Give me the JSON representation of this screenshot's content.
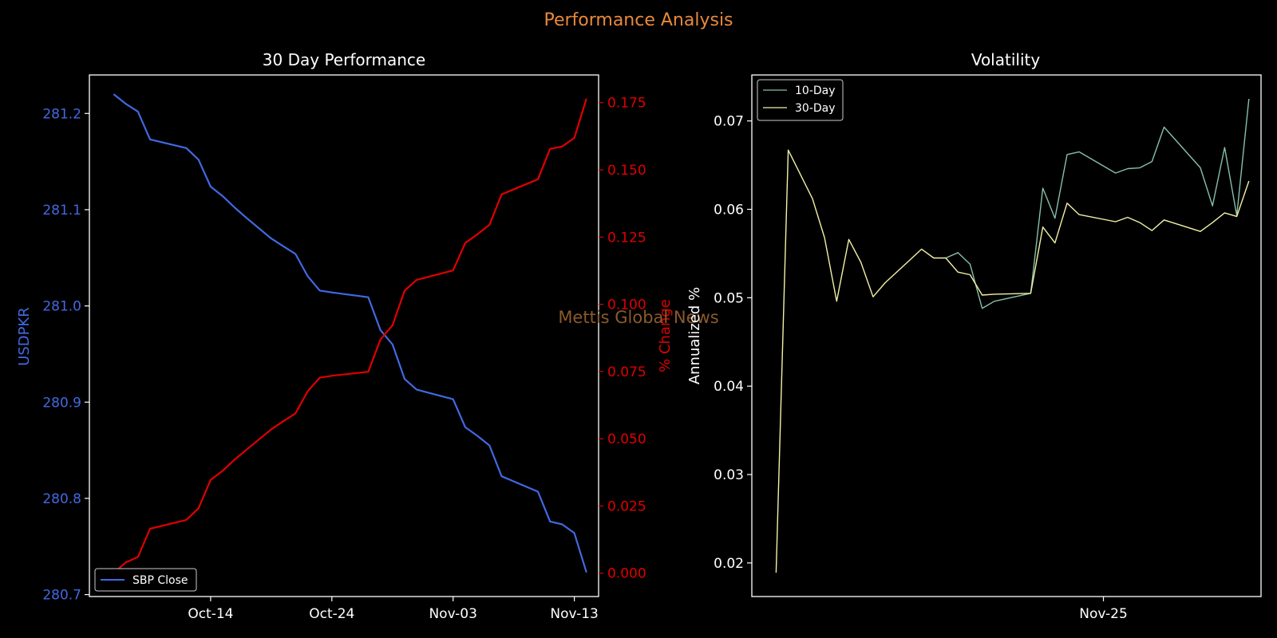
{
  "figure": {
    "suptitle": "Performance Analysis",
    "watermark": "Mettis Global News"
  },
  "colors": {
    "background": "#000000",
    "suptitle": "#e8893b",
    "price": "#4169e1",
    "pct": "#e00000",
    "vol10": "#86c1a8",
    "vol30": "#f2f2a6",
    "axis": "#ffffff",
    "watermark": "#8a5a2b"
  },
  "chart_data": [
    {
      "type": "line",
      "title": "30 Day Performance",
      "xlabel": "",
      "x_tick_labels": [
        "Oct-14",
        "Oct-24",
        "Nov-03",
        "Nov-13"
      ],
      "x_tick_days": [
        10,
        20,
        30,
        40
      ],
      "xlim_days": [
        0,
        42
      ],
      "left_axis": {
        "label": "USDPKR",
        "ylim": [
          280.698,
          281.24
        ],
        "ticks": [
          "280.7",
          "280.8",
          "280.9",
          "281.0",
          "281.1",
          "281.2"
        ],
        "tick_values": [
          280.7,
          280.8,
          280.9,
          281.0,
          281.1,
          281.2
        ]
      },
      "right_axis": {
        "label": "% Change",
        "ylim": [
          -0.0087,
          0.1853
        ],
        "ticks": [
          "0.000",
          "0.025",
          "0.050",
          "0.075",
          "0.100",
          "0.125",
          "0.150",
          "0.175"
        ],
        "tick_values": [
          0,
          0.025,
          0.05,
          0.075,
          0.1,
          0.125,
          0.15,
          0.175
        ]
      },
      "legend": {
        "entries": [
          "SBP Close"
        ],
        "placement": "lower-left"
      },
      "series": [
        {
          "name": "SBP Close",
          "axis": "left",
          "x": [
            2,
            3,
            4,
            5,
            8,
            9,
            10,
            11,
            12,
            13,
            15,
            16,
            17,
            18,
            19,
            20,
            23,
            24,
            25,
            26,
            27,
            30,
            31,
            32,
            33,
            34,
            37,
            38,
            39,
            40,
            41
          ],
          "values": [
            281.22,
            281.21,
            281.202,
            281.173,
            281.164,
            281.152,
            281.124,
            281.114,
            281.102,
            281.091,
            281.07,
            281.062,
            281.054,
            281.031,
            281.016,
            281.014,
            281.009,
            280.975,
            280.96,
            280.924,
            280.913,
            280.903,
            280.874,
            280.865,
            280.855,
            280.823,
            280.807,
            280.776,
            280.773,
            280.764,
            280.723
          ]
        },
        {
          "name": "% Change",
          "axis": "right",
          "x": [
            2,
            3,
            4,
            5,
            8,
            9,
            10,
            11,
            12,
            13,
            15,
            16,
            17,
            18,
            19,
            20,
            23,
            24,
            25,
            26,
            27,
            30,
            31,
            32,
            33,
            34,
            37,
            38,
            39,
            40,
            41
          ],
          "values": [
            0.0,
            0.004,
            0.006,
            0.0165,
            0.0198,
            0.0241,
            0.0347,
            0.0381,
            0.0423,
            0.0461,
            0.0535,
            0.0565,
            0.0594,
            0.0676,
            0.0727,
            0.0734,
            0.0749,
            0.0869,
            0.0922,
            0.1051,
            0.1091,
            0.1126,
            0.1228,
            0.126,
            0.1296,
            0.1409,
            0.1465,
            0.1578,
            0.1587,
            0.1619,
            0.1765
          ]
        }
      ]
    },
    {
      "type": "line",
      "title": "Volatility",
      "xlabel": "",
      "ylabel": "Annualized %",
      "x_tick_labels": [
        "Nov-25"
      ],
      "x_tick_days": [
        27
      ],
      "xlim_days": [
        -2,
        40
      ],
      "ylim": [
        0.0162,
        0.0752
      ],
      "y_ticks": [
        "0.02",
        "0.03",
        "0.04",
        "0.05",
        "0.06",
        "0.07"
      ],
      "y_tick_values": [
        0.02,
        0.03,
        0.04,
        0.05,
        0.06,
        0.07
      ],
      "grid": false,
      "legend": {
        "entries": [
          "10-Day",
          "30-Day"
        ],
        "placement": "top-left"
      },
      "series": [
        {
          "name": "10-Day",
          "x": [
            14,
            15,
            16,
            17,
            18,
            21,
            22,
            23,
            24,
            25,
            28,
            29,
            30,
            31,
            32,
            35,
            36,
            37,
            38,
            39
          ],
          "values": [
            0.0545,
            0.0551,
            0.0538,
            0.0488,
            0.0496,
            0.0505,
            0.0624,
            0.059,
            0.0662,
            0.0665,
            0.0641,
            0.0646,
            0.0647,
            0.0654,
            0.0693,
            0.0647,
            0.0604,
            0.067,
            0.0593,
            0.0725
          ]
        },
        {
          "name": "30-Day",
          "x": [
            0,
            1,
            3,
            4,
            5,
            6,
            7,
            8,
            9,
            12,
            13,
            14,
            15,
            16,
            17,
            18,
            21,
            22,
            23,
            24,
            25,
            28,
            29,
            30,
            31,
            32,
            35,
            36,
            37,
            38,
            39
          ],
          "values": [
            0.0189,
            0.0667,
            0.0612,
            0.0568,
            0.0496,
            0.0566,
            0.054,
            0.0501,
            0.0517,
            0.0555,
            0.0545,
            0.0545,
            0.0529,
            0.0526,
            0.0503,
            0.0504,
            0.0505,
            0.058,
            0.0562,
            0.0607,
            0.0594,
            0.0586,
            0.0591,
            0.0585,
            0.0576,
            0.0588,
            0.0575,
            0.0585,
            0.0596,
            0.0592,
            0.0632
          ]
        }
      ]
    }
  ]
}
